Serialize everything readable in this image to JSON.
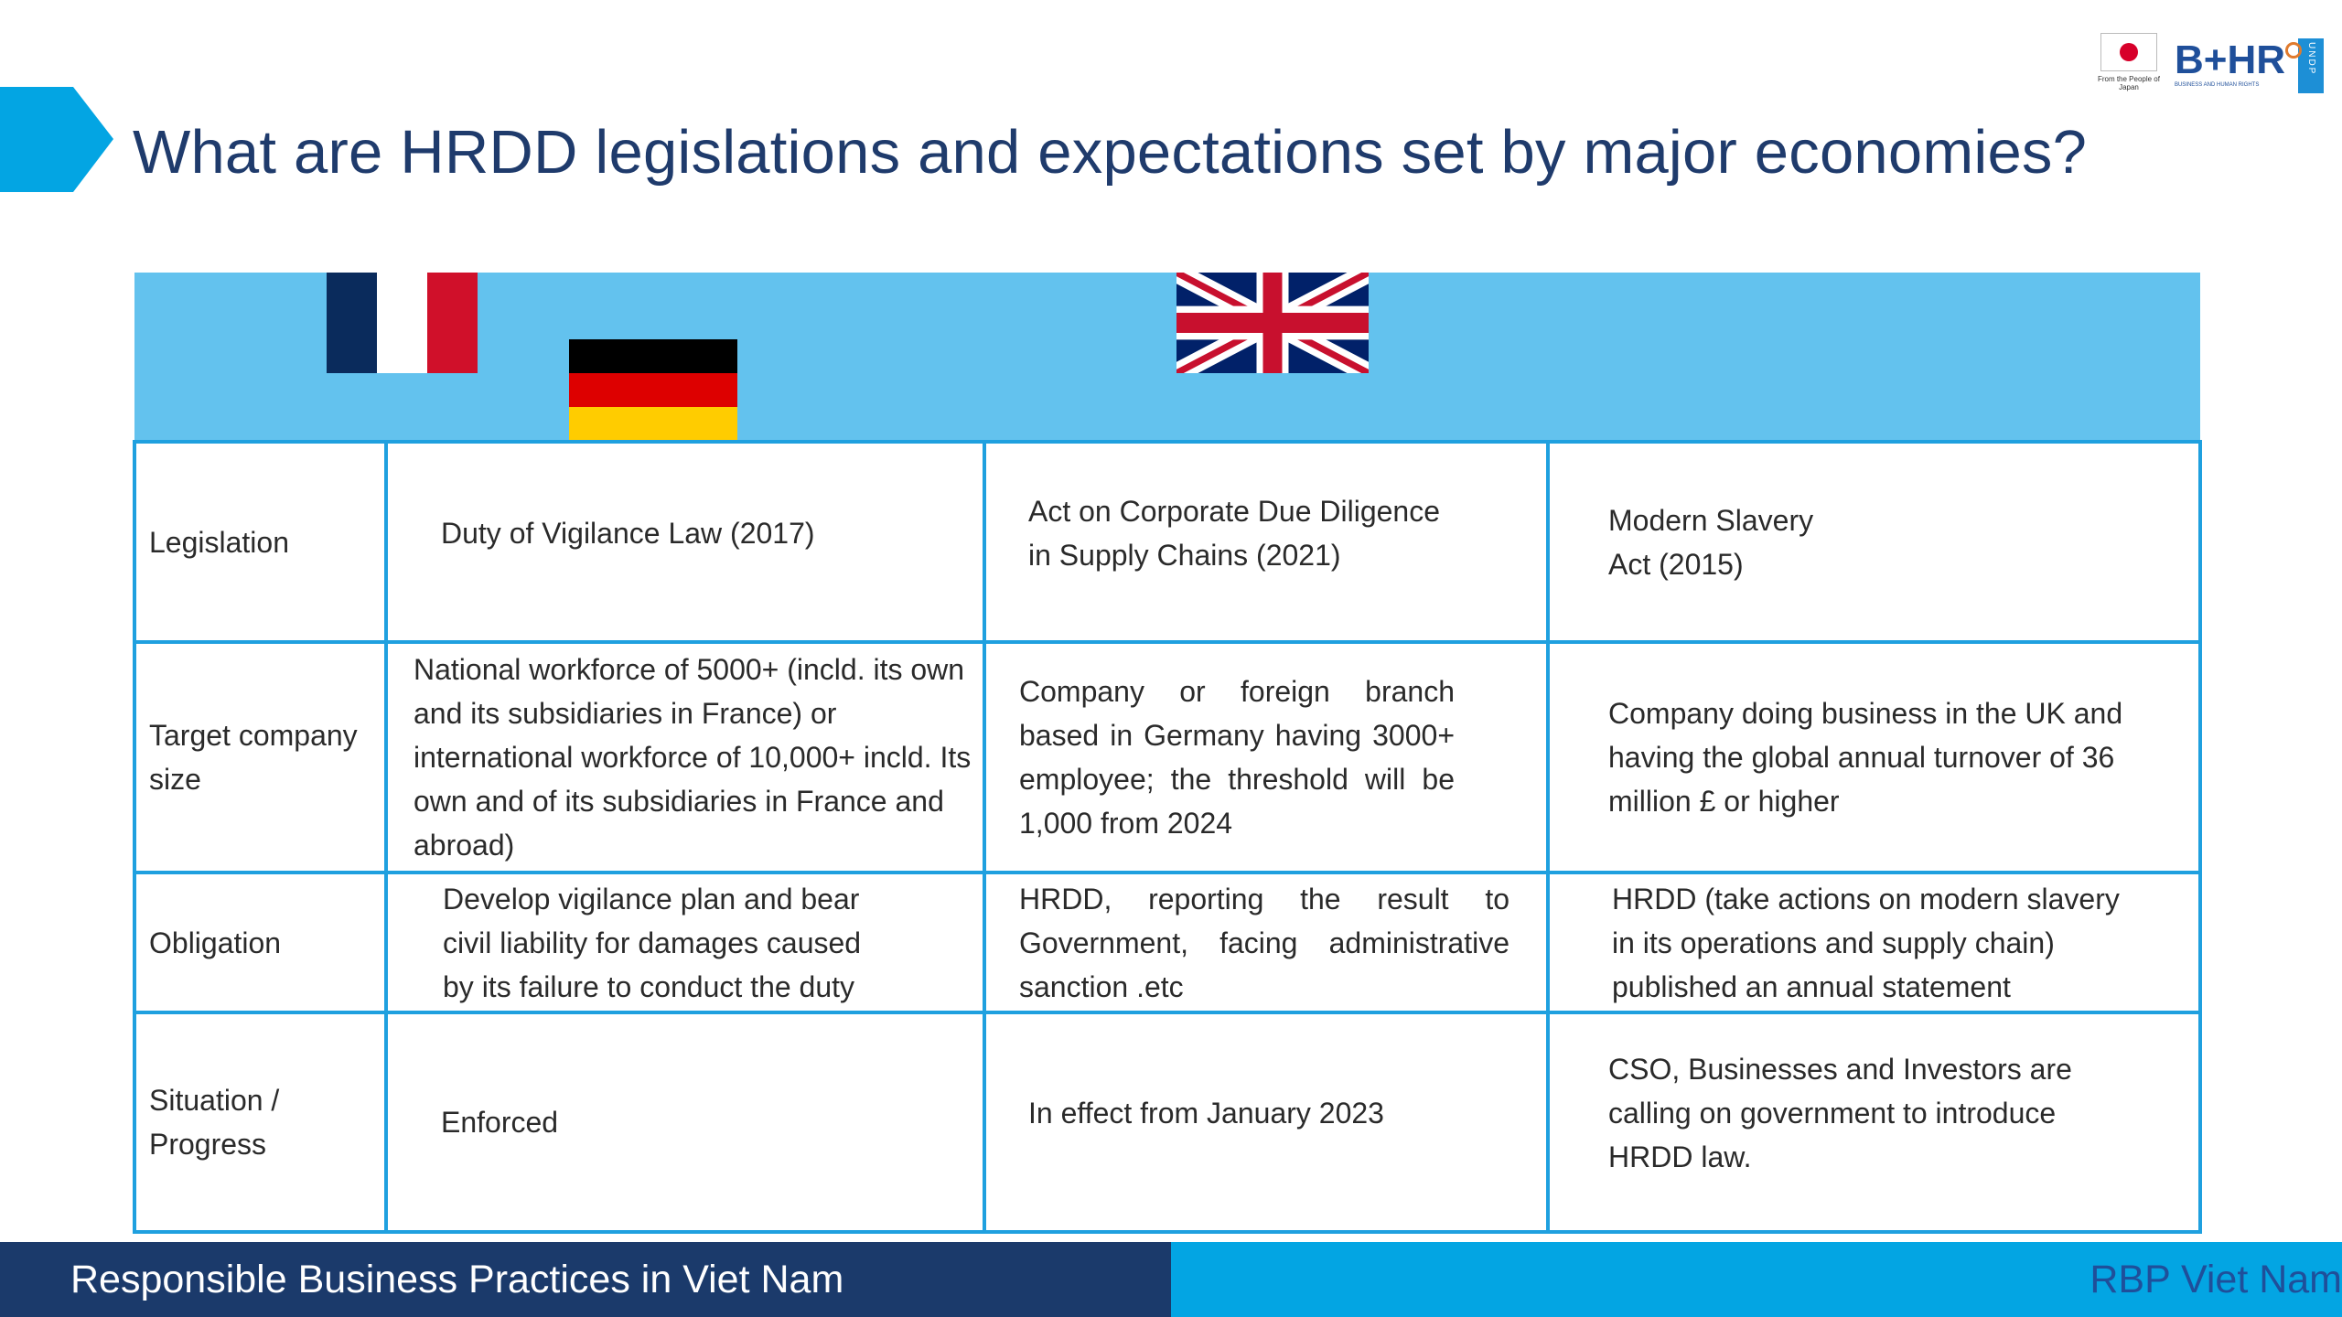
{
  "title": "What are HRDD legislations and expectations set by major economies?",
  "logos": {
    "japan_caption": "From the People of Japan",
    "bhr_word": "B+HR",
    "bhr_sub": "BUSINESS AND HUMAN RIGHTS",
    "undp_letters": "UNDP"
  },
  "colors": {
    "title": "#1f3b6c",
    "accent": "#1fa0df",
    "header_band": "#63c2ee",
    "footer_left": "#1b3a6b",
    "footer_right": "#03a5e3"
  },
  "countries": [
    {
      "flag_icon": "france-flag-icon"
    },
    {
      "flag_icon": "germany-flag-icon"
    },
    {
      "flag_icon": "uk-flag-icon"
    }
  ],
  "table": {
    "rows": [
      {
        "label": "Legislation",
        "cells": [
          "Duty of Vigilance Law (2017)",
          "Act on Corporate Due Diligence in Supply Chains (2021)",
          "Modern Slavery Act (2015)"
        ]
      },
      {
        "label": "Target company size",
        "cells": [
          "National workforce of 5000+ (incld. its own and its subsidiaries in France) or international workforce of 10,000+ incld. Its own and of its subsidiaries in France and abroad)",
          "Company or foreign branch based in Germany having 3000+ employee; the threshold will be 1,000 from 2024",
          "Company doing business in the UK and having the global annual turnover of 36 million £ or higher"
        ]
      },
      {
        "label": "Obligation",
        "cells": [
          "Develop vigilance plan and bear civil liability for damages caused by its failure to conduct the duty",
          "HRDD, reporting the result to Government, facing administrative sanction .etc",
          "HRDD (take actions on modern slavery in its operations and supply chain) published an annual statement"
        ]
      },
      {
        "label": "Situation / Progress",
        "cells": [
          "Enforced",
          "In effect from January 2023",
          "CSO, Businesses and Investors are calling on government to introduce HRDD law."
        ]
      }
    ]
  },
  "footer": {
    "left": "Responsible Business Practices in Viet Nam",
    "right": "RBP Viet Nam"
  }
}
